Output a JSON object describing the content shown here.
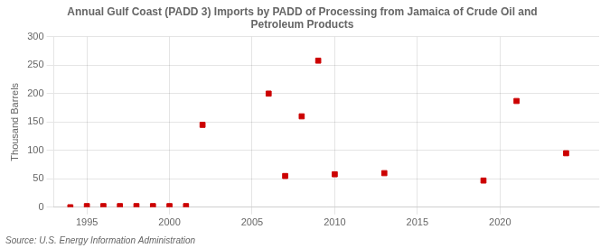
{
  "chart_data": {
    "type": "scatter",
    "title": "Annual Gulf Coast (PADD 3) Imports by PADD of Processing from Jamaica of Crude Oil and\nPetroleum Products",
    "ylabel": "Thousand Barrels",
    "source": "Source: U.S. Energy Information Administration",
    "x": [
      1994,
      1995,
      1996,
      1997,
      1998,
      1999,
      2000,
      2001,
      2002,
      2006,
      2007,
      2008,
      2009,
      2010,
      2013,
      2019,
      2021,
      2024
    ],
    "values": [
      0,
      2,
      2,
      2,
      2,
      2,
      2,
      2,
      145,
      200,
      55,
      160,
      258,
      58,
      60,
      47,
      187,
      95
    ],
    "color": "#cc0000",
    "marker": "square",
    "xlim": [
      1993,
      2026
    ],
    "xticks": [
      1995,
      2000,
      2005,
      2010,
      2015,
      2020
    ],
    "ylim": [
      0,
      300
    ],
    "yticks": [
      0,
      50,
      100,
      150,
      200,
      250,
      300
    ],
    "grid": true
  }
}
